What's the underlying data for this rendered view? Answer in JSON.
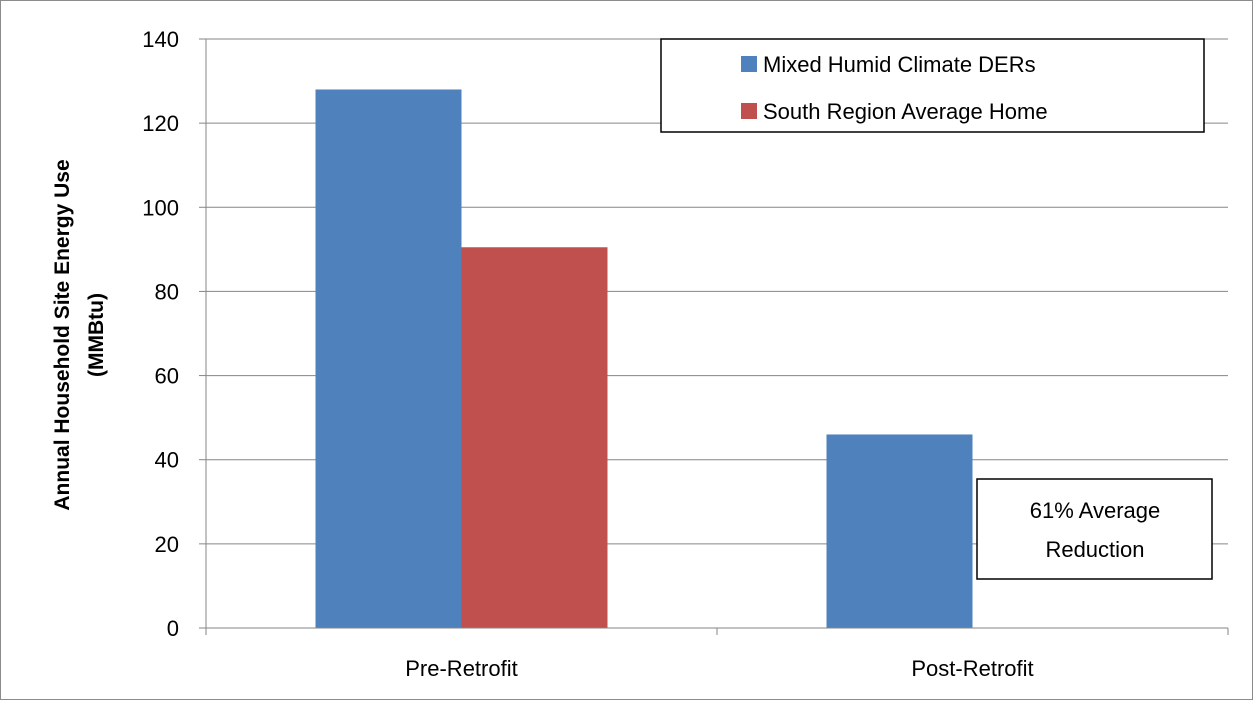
{
  "chart_data": {
    "type": "bar",
    "categories": [
      "Pre-Retrofit",
      "Post-Retrofit"
    ],
    "series": [
      {
        "name": "Mixed Humid Climate DERs",
        "values": [
          128,
          46
        ],
        "color": "#4f81bd"
      },
      {
        "name": "South Region Average Home",
        "values": [
          90.5,
          null
        ],
        "color": "#c0504d"
      }
    ],
    "title": "",
    "xlabel": "",
    "ylabel_lines": [
      "Annual Household Site Energy Use",
      "(MMBtu)"
    ],
    "ylim": [
      0,
      140
    ],
    "yticks": [
      0,
      20,
      40,
      60,
      80,
      100,
      120,
      140
    ],
    "grid": true,
    "legend_position": "top-right",
    "annotation_lines": [
      "61% Average",
      "Reduction"
    ],
    "annotation_position": "lower-right"
  }
}
